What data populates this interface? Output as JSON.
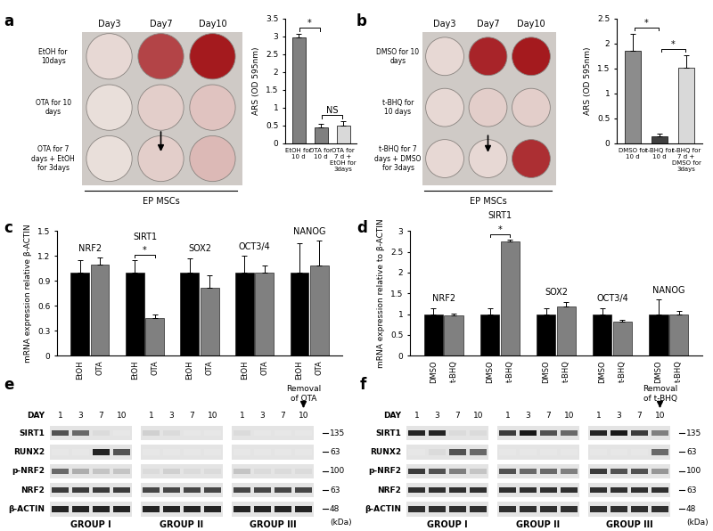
{
  "chart_data": [
    {
      "panel": "a",
      "type": "bar",
      "categories": [
        "EtOH for 10 d",
        "OTA for 10 d",
        "OTA for 7 d + EtOH for 3days"
      ],
      "values": [
        2.98,
        0.45,
        0.5
      ],
      "errors": [
        0.08,
        0.1,
        0.12
      ],
      "colors": [
        "#808080",
        "#808080",
        "#d9d9d9"
      ],
      "y_label": "ARS (OD 595nm)",
      "ylim": [
        0,
        3.5
      ],
      "yticks": [
        0,
        0.5,
        1,
        1.5,
        2,
        2.5,
        3,
        3.5
      ],
      "significance": [
        {
          "from": "EtOH for 10 d",
          "to": "OTA for 10 d",
          "label": "*"
        },
        {
          "from": "OTA for 10 d",
          "to": "OTA for 7 d + EtOH for 3days",
          "label": "NS"
        }
      ]
    },
    {
      "panel": "b",
      "type": "bar",
      "categories": [
        "DMSO for 10 d",
        "t-BHQ for 10 d",
        "t-BHQ for 7 d + DMSO for 3days"
      ],
      "values": [
        1.85,
        0.15,
        1.52
      ],
      "errors": [
        0.35,
        0.05,
        0.25
      ],
      "colors": [
        "#8c8c8c",
        "#404040",
        "#d9d9d9"
      ],
      "y_label": "ARS (OD 595nm)",
      "ylim": [
        0,
        2.5
      ],
      "yticks": [
        0,
        0.5,
        1,
        1.5,
        2,
        2.5
      ],
      "significance": [
        {
          "from": "DMSO for 10 d",
          "to": "t-BHQ for 10 d",
          "label": "*"
        },
        {
          "from": "t-BHQ for 10 d",
          "to": "t-BHQ for 7 d + DMSO for 3days",
          "label": "*"
        }
      ]
    },
    {
      "panel": "c",
      "type": "bar",
      "categories": [
        "NRF2",
        "SIRT1",
        "SOX2",
        "OCT3/4",
        "NANOG"
      ],
      "series": [
        {
          "name": "EtOH",
          "color": "#000000",
          "values": [
            1,
            1,
            1,
            1,
            1
          ],
          "errors": [
            0.15,
            0.15,
            0.17,
            0.2,
            0.35
          ]
        },
        {
          "name": "OTA",
          "color": "#808080",
          "values": [
            1.1,
            0.45,
            0.82,
            1.0,
            1.08
          ],
          "errors": [
            0.08,
            0.05,
            0.15,
            0.08,
            0.3
          ]
        }
      ],
      "y_label": "mRNA expression relative β-ACTIN",
      "ylim": [
        0,
        1.5
      ],
      "yticks": [
        0,
        0.3,
        0.6,
        0.9,
        1.2,
        1.5
      ],
      "significance": [
        {
          "category": "SIRT1",
          "label": "*"
        }
      ]
    },
    {
      "panel": "d",
      "type": "bar",
      "categories": [
        "NRF2",
        "SIRT1",
        "SOX2",
        "OCT3/4",
        "NANOG"
      ],
      "series": [
        {
          "name": "DMSO",
          "color": "#000000",
          "values": [
            1,
            1,
            1,
            1,
            1
          ],
          "errors": [
            0.15,
            0.15,
            0.15,
            0.15,
            0.35
          ]
        },
        {
          "name": "t-BHQ",
          "color": "#808080",
          "values": [
            0.97,
            2.75,
            1.18,
            0.83,
            1.0
          ],
          "errors": [
            0.05,
            0.05,
            0.12,
            0.03,
            0.07
          ]
        }
      ],
      "y_label": "mRNA expression relative to β-ACTIN",
      "ylim": [
        0,
        3
      ],
      "yticks": [
        0,
        0.5,
        1,
        1.5,
        2,
        2.5,
        3
      ],
      "significance": [
        {
          "category": "SIRT1",
          "label": "*"
        }
      ]
    }
  ],
  "plates": [
    {
      "columns": [
        "Day3",
        "Day7",
        "Day10"
      ],
      "rows": [
        "EtOH for 10days",
        "OTA for 10 days",
        "OTA for 7 days + EtOH for 3days"
      ],
      "stain": [
        [
          0.05,
          0.75,
          0.95
        ],
        [
          0.02,
          0.1,
          0.15
        ],
        [
          0.02,
          0.1,
          0.2
        ]
      ],
      "footer": "EP MSCs"
    },
    {
      "columns": [
        "Day3",
        "Day7",
        "Day10"
      ],
      "rows": [
        "DMSO for 10 days",
        "t-BHQ for 10 days",
        "t-BHQ for 7 days + DMSO for 3days"
      ],
      "stain": [
        [
          0.05,
          0.9,
          0.95
        ],
        [
          0.05,
          0.1,
          0.1
        ],
        [
          0.05,
          0.05,
          0.85
        ]
      ],
      "footer": "EP MSCs"
    }
  ],
  "blots": [
    {
      "panel": "e",
      "day_label": "DAY",
      "days": [
        1,
        3,
        7,
        10
      ],
      "groups": [
        "GROUP I",
        "GROUP II",
        "GROUP III"
      ],
      "removal_label": "Removal of OTA",
      "unit": "(kDa)",
      "proteins": [
        {
          "name": "SIRT1",
          "mw": 135,
          "bands": [
            [
              0.7,
              0.6,
              0.1,
              0.05
            ],
            [
              0.15,
              0.1,
              0.05,
              0.05
            ],
            [
              0.1,
              0.05,
              0.05,
              0.05
            ]
          ]
        },
        {
          "name": "RUNX2",
          "mw": 63,
          "bands": [
            [
              0.05,
              0.05,
              0.9,
              0.7
            ],
            [
              0.05,
              0.05,
              0.05,
              0.05
            ],
            [
              0.05,
              0.05,
              0.05,
              0.05
            ]
          ]
        },
        {
          "name": "p-NRF2",
          "mw": 100,
          "bands": [
            [
              0.6,
              0.3,
              0.2,
              0.2
            ],
            [
              0.1,
              0.15,
              0.1,
              0.1
            ],
            [
              0.2,
              0.1,
              0.1,
              0.1
            ]
          ]
        },
        {
          "name": "NRF2",
          "mw": 63,
          "bands": [
            [
              0.8,
              0.8,
              0.8,
              0.8
            ],
            [
              0.75,
              0.75,
              0.75,
              0.75
            ],
            [
              0.75,
              0.75,
              0.75,
              0.75
            ]
          ]
        },
        {
          "name": "β-ACTIN",
          "mw": 48,
          "bands": [
            [
              0.9,
              0.9,
              0.9,
              0.9
            ],
            [
              0.9,
              0.9,
              0.9,
              0.9
            ],
            [
              0.9,
              0.9,
              0.9,
              0.9
            ]
          ]
        }
      ]
    },
    {
      "panel": "f",
      "day_label": "DAY",
      "days": [
        1,
        3,
        7,
        10
      ],
      "groups": [
        "GROUP I",
        "GROUP II",
        "GROUP III"
      ],
      "removal_label": "Removal of t-BHQ",
      "unit": "(kDa)",
      "proteins": [
        {
          "name": "SIRT1",
          "mw": 135,
          "bands": [
            [
              0.9,
              0.9,
              0.1,
              0.1
            ],
            [
              0.8,
              0.95,
              0.7,
              0.6
            ],
            [
              0.9,
              0.95,
              0.8,
              0.5
            ]
          ]
        },
        {
          "name": "RUNX2",
          "mw": 63,
          "bands": [
            [
              0.05,
              0.1,
              0.7,
              0.6
            ],
            [
              0.05,
              0.05,
              0.05,
              0.05
            ],
            [
              0.05,
              0.05,
              0.05,
              0.6
            ]
          ]
        },
        {
          "name": "p-NRF2",
          "mw": 100,
          "bands": [
            [
              0.8,
              0.7,
              0.5,
              0.2
            ],
            [
              0.7,
              0.6,
              0.6,
              0.5
            ],
            [
              0.8,
              0.7,
              0.7,
              0.4
            ]
          ]
        },
        {
          "name": "NRF2",
          "mw": 63,
          "bands": [
            [
              0.85,
              0.85,
              0.85,
              0.85
            ],
            [
              0.85,
              0.85,
              0.85,
              0.85
            ],
            [
              0.85,
              0.85,
              0.85,
              0.85
            ]
          ]
        },
        {
          "name": "β-ACTIN",
          "mw": 48,
          "bands": [
            [
              0.85,
              0.85,
              0.85,
              0.85
            ],
            [
              0.85,
              0.85,
              0.85,
              0.85
            ],
            [
              0.85,
              0.85,
              0.85,
              0.85
            ]
          ]
        }
      ]
    }
  ]
}
